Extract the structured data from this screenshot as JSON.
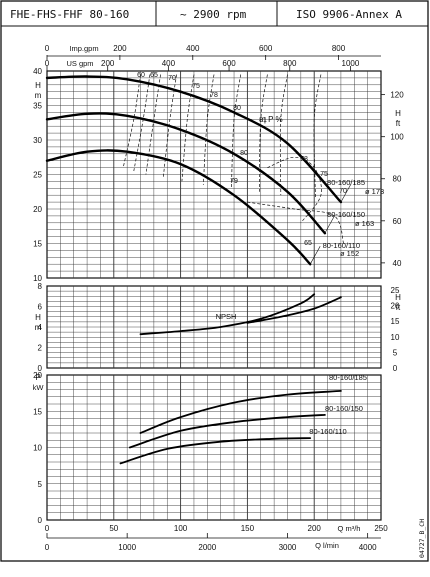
{
  "header": {
    "model": "FHE-FHS-FHF 80-160",
    "speed": "~ 2900 rpm",
    "standard": "ISO 9906-Annex A"
  },
  "side_code": "04727_B_CH",
  "chart_data": [
    {
      "type": "line",
      "panel": "head",
      "axes": {
        "left": {
          "label": "H\nm",
          "ticks": [
            10,
            15,
            20,
            25,
            30,
            35,
            40
          ],
          "range": [
            10,
            40
          ]
        },
        "right": {
          "label": "H\nft",
          "ticks": [
            40,
            60,
            80,
            100,
            120
          ],
          "range": [
            32.8,
            131.2
          ]
        },
        "top_imp": {
          "label": "Imp.gpm",
          "ticks": [
            0,
            200,
            400,
            600,
            800
          ]
        },
        "top_us": {
          "label": "US gpm",
          "ticks": [
            0,
            200,
            400,
            600,
            800,
            1000
          ]
        }
      },
      "x_unit": "Q m³/h",
      "x_range": [
        0,
        250
      ],
      "series": [
        {
          "name": "80-160/185",
          "sub": "ø 173",
          "x": [
            0,
            30,
            60,
            100,
            140,
            180,
            220
          ],
          "y": [
            39,
            39.2,
            38.8,
            37,
            34,
            29.5,
            21
          ]
        },
        {
          "name": "80-160/150",
          "sub": "ø 163",
          "x": [
            0,
            30,
            60,
            100,
            140,
            180,
            208
          ],
          "y": [
            33,
            33.8,
            33.5,
            31.5,
            28,
            22.5,
            16.5
          ]
        },
        {
          "name": "80-160/110",
          "sub": "ø 152",
          "x": [
            0,
            30,
            60,
            100,
            140,
            180,
            197
          ],
          "y": [
            27,
            28.3,
            28.3,
            26.5,
            22,
            15.5,
            12
          ]
        }
      ],
      "efficiency_label": "η P %",
      "efficiency_values": [
        "60",
        "65",
        "70",
        "75",
        "78",
        "80",
        "81",
        "80",
        "79",
        "78",
        "75",
        "70",
        "65"
      ],
      "grid": true
    },
    {
      "type": "line",
      "panel": "npsh",
      "axes": {
        "left": {
          "label": "H\nm",
          "ticks": [
            0,
            2,
            4,
            6,
            8
          ],
          "range": [
            0,
            8
          ]
        },
        "right": {
          "label": "H\nft",
          "ticks": [
            0,
            5,
            10,
            15,
            20,
            25
          ],
          "range": [
            0,
            26.2
          ]
        }
      },
      "series": [
        {
          "name": "NPSH",
          "x": [
            70,
            100,
            130,
            160,
            190,
            200
          ],
          "y": [
            3.3,
            3.6,
            4.0,
            4.8,
            6.3,
            7.2
          ]
        },
        {
          "name": "",
          "x": [
            150,
            175,
            200,
            220
          ],
          "y": [
            4.4,
            5.0,
            5.8,
            6.9
          ]
        }
      ],
      "grid": true
    },
    {
      "type": "line",
      "panel": "power",
      "axes": {
        "left": {
          "label": "P\nkW",
          "ticks": [
            0,
            5,
            10,
            15,
            20
          ],
          "range": [
            0,
            20
          ]
        },
        "bottom_q": {
          "label": "Q m³/h",
          "ticks": [
            0,
            50,
            100,
            150,
            200,
            250
          ]
        },
        "bottom_l": {
          "label": "Q l/min",
          "ticks": [
            0,
            1000,
            2000,
            3000,
            4000
          ]
        }
      },
      "series": [
        {
          "name": "80-160/185",
          "x": [
            70,
            100,
            140,
            180,
            220
          ],
          "y": [
            12,
            14.2,
            16.2,
            17.3,
            17.8
          ]
        },
        {
          "name": "80-160/150",
          "x": [
            62,
            100,
            140,
            180,
            208
          ],
          "y": [
            10,
            12.3,
            13.5,
            14.2,
            14.5
          ]
        },
        {
          "name": "80-160/110",
          "x": [
            55,
            90,
            130,
            170,
            197
          ],
          "y": [
            7.8,
            9.8,
            10.8,
            11.2,
            11.3
          ]
        }
      ],
      "grid": true
    }
  ]
}
